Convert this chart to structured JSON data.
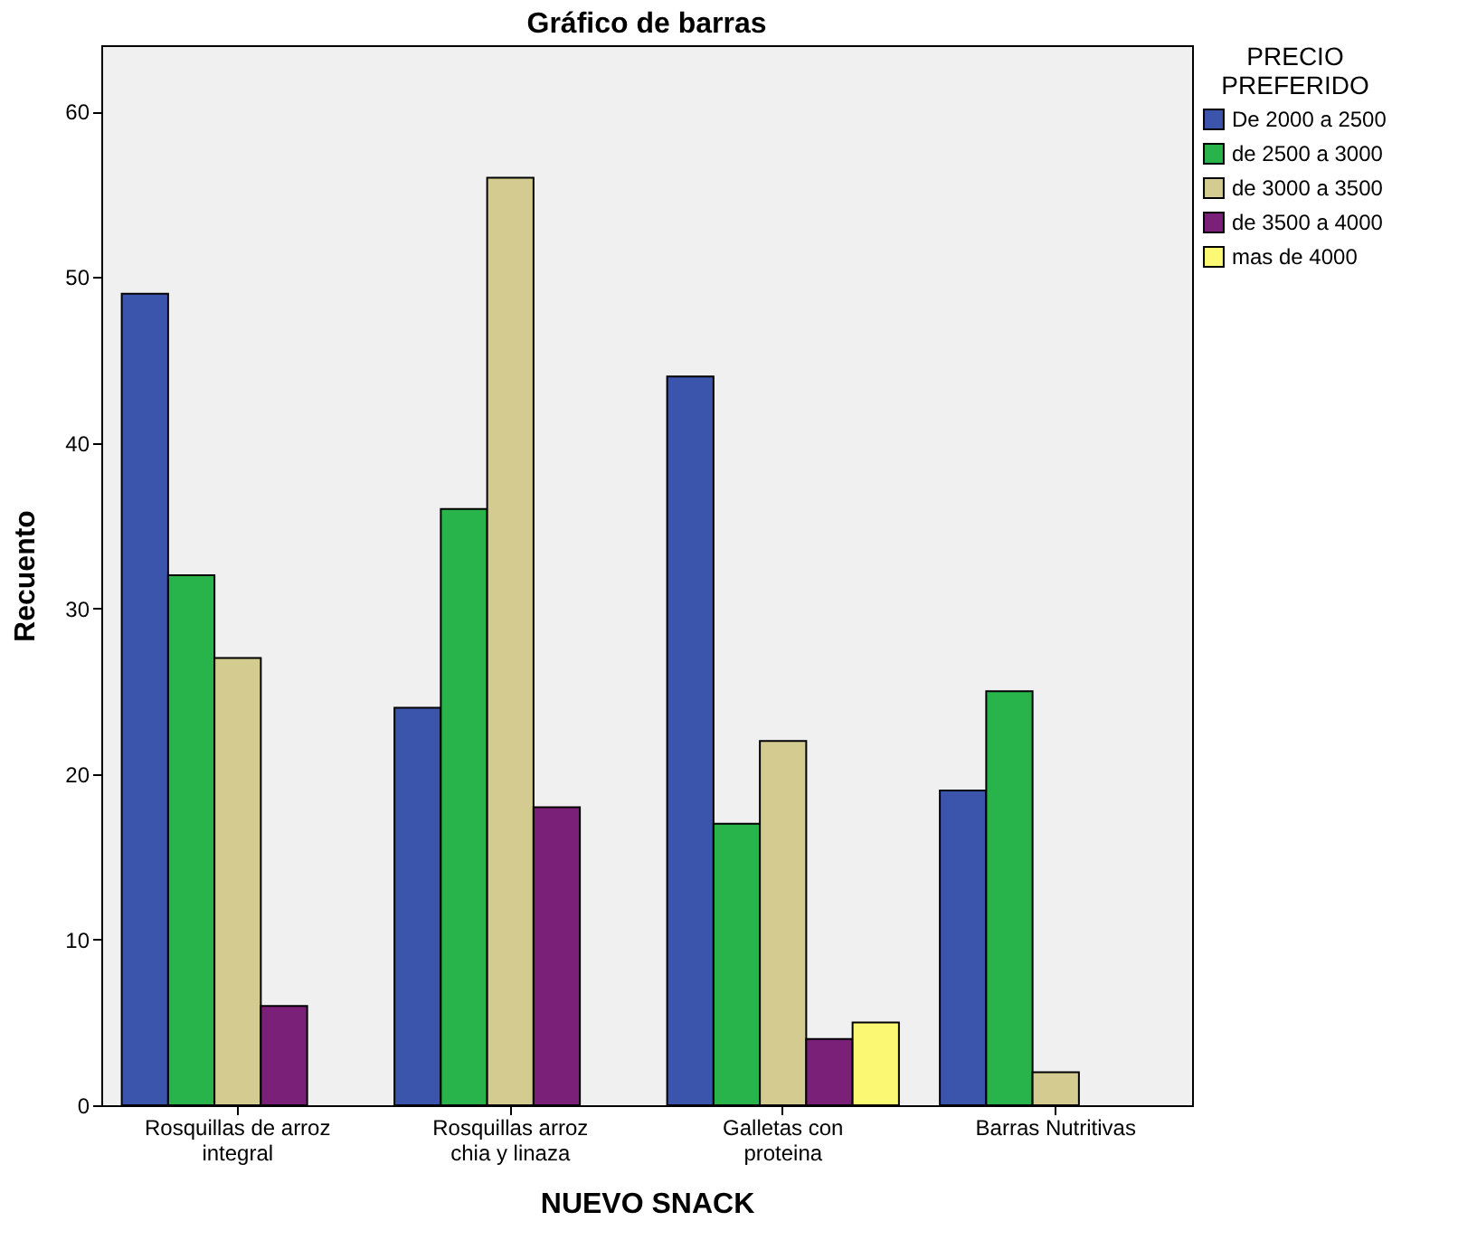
{
  "chart_data": {
    "type": "bar",
    "title": "Gráfico de barras",
    "xlabel": "NUEVO SNACK",
    "ylabel": "Recuento",
    "legend_title": "PRECIO PREFERIDO",
    "legend": "right",
    "categories": [
      "Rosquillas de arroz integral",
      "Rosquillas arroz chia y linaza",
      "Galletas con proteina",
      "Barras Nutritivas"
    ],
    "series": [
      {
        "name": "De 2000 a 2500",
        "color": "#3c55ac",
        "values": [
          49,
          24,
          44,
          19
        ]
      },
      {
        "name": "de 2500 a 3000",
        "color": "#28b34b",
        "values": [
          32,
          36,
          17,
          25
        ]
      },
      {
        "name": "de 3000 a 3500",
        "color": "#d3cb8f",
        "values": [
          27,
          56,
          22,
          2
        ]
      },
      {
        "name": "de 3500 a 4000",
        "color": "#7b2079",
        "values": [
          6,
          18,
          4,
          null
        ]
      },
      {
        "name": "mas de 4000",
        "color": "#fbf873",
        "values": [
          null,
          null,
          5,
          null
        ]
      }
    ],
    "ylim": [
      0,
      64
    ],
    "yticks": [
      0,
      10,
      20,
      30,
      40,
      50,
      60
    ],
    "grid": false
  }
}
